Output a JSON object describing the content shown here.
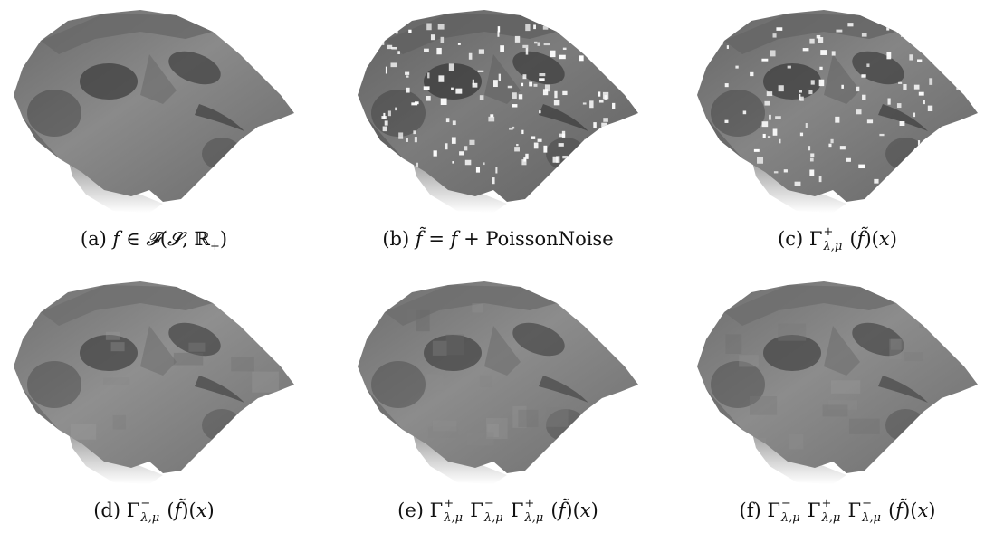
{
  "figure": {
    "panels": [
      {
        "id": "a",
        "label": "(a)",
        "text": "f ∈ 𝓕(𝓢, ℝ₊)",
        "variant": "original"
      },
      {
        "id": "b",
        "label": "(b)",
        "text": "f̃ = f + PoissonNoise",
        "variant": "noisy"
      },
      {
        "id": "c",
        "label": "(c)",
        "text": "Γ⁺λ,μ(f̃)(x)",
        "variant": "opening"
      },
      {
        "id": "d",
        "label": "(d)",
        "text": "Γ⁻λ,μ(f̃)(x)",
        "variant": "closing"
      },
      {
        "id": "e",
        "label": "(e)",
        "text": "Γ⁺λ,μΓ⁻λ,μΓ⁺λ,μ(f̃)(x)",
        "variant": "smooth"
      },
      {
        "id": "f",
        "label": "(f)",
        "text": "Γ⁻λ,μΓ⁺λ,μΓ⁻λ,μ(f̃)(x)",
        "variant": "smooth"
      }
    ]
  }
}
